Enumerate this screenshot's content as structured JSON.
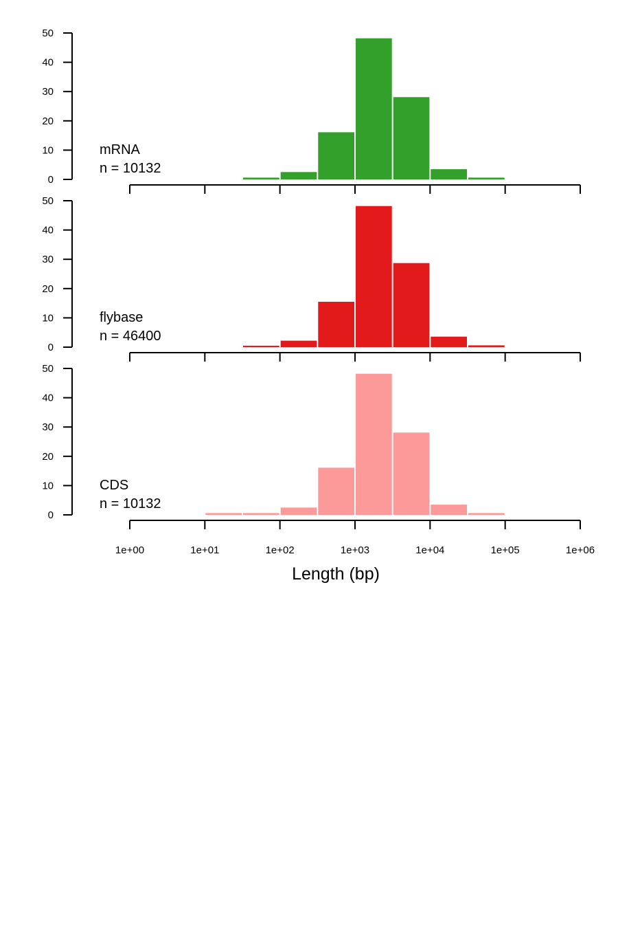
{
  "chart_data": {
    "type": "bar",
    "xlabel": "Length (bp)",
    "x_scale": "log10",
    "x_ticks": [
      "1e+00",
      "1e+01",
      "1e+02",
      "1e+03",
      "1e+04",
      "1e+05",
      "1e+06"
    ],
    "xlim": [
      1,
      1000000
    ],
    "ylim": [
      0,
      50
    ],
    "y_ticks": [
      0,
      10,
      20,
      30,
      40,
      50
    ],
    "bin_edges": [
      1,
      3.162,
      10,
      31.62,
      100,
      316.2,
      1000,
      3162,
      10000,
      31620,
      100000,
      316200,
      1000000
    ],
    "panels": [
      {
        "label": "mRNA",
        "n_label": "n =  10132",
        "color": "#33a02c",
        "values": [
          0,
          0,
          0,
          0.6,
          2.5,
          16.1,
          48.2,
          28.1,
          3.5,
          0.6,
          0,
          0
        ]
      },
      {
        "label": "flybase",
        "n_label": "n =  46400",
        "color": "#e31a1c",
        "values": [
          0,
          0,
          0,
          0.5,
          2.2,
          15.5,
          48.2,
          28.7,
          3.6,
          0.6,
          0,
          0
        ]
      },
      {
        "label": "CDS",
        "n_label": "n =  10132",
        "color": "#fb9a99",
        "values": [
          0,
          0,
          0.6,
          0.6,
          2.5,
          16.1,
          48.2,
          28.1,
          3.5,
          0.6,
          0,
          0
        ]
      }
    ]
  }
}
